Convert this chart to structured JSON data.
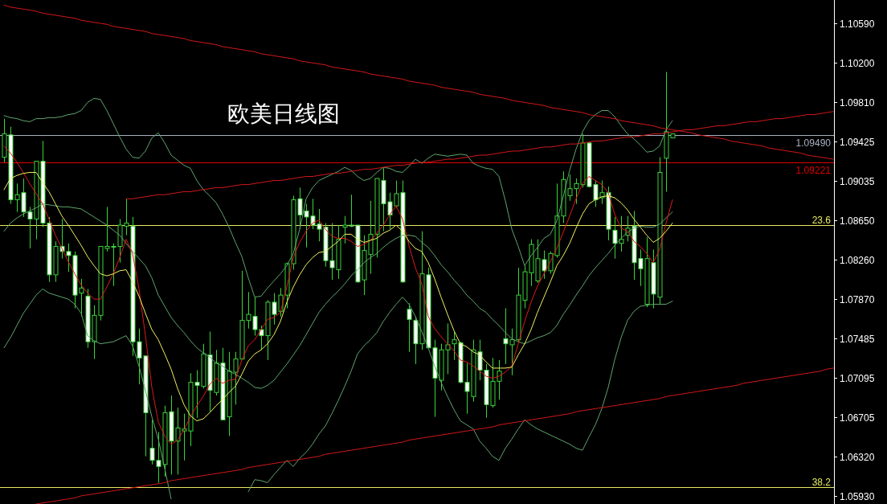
{
  "chart_data": {
    "type": "candlestick",
    "title": "欧美日线图",
    "tick_labels": "y",
    "color": "#3ad43a",
    "categories": [
      null,
      null,
      null,
      null,
      null,
      null,
      null,
      null,
      null,
      null,
      null,
      null,
      null,
      null,
      null,
      null,
      null,
      null,
      null,
      null,
      null,
      null,
      null,
      null,
      null,
      null,
      null,
      null,
      null,
      null,
      null,
      null,
      null,
      null,
      null,
      null,
      null,
      null,
      null,
      null,
      null,
      null,
      null,
      null,
      null,
      null,
      null,
      null,
      null,
      null,
      null,
      null,
      null,
      null,
      null,
      null,
      null,
      null,
      null,
      null,
      null,
      null,
      null,
      null,
      null,
      null,
      null,
      null,
      null,
      null,
      null,
      null,
      null,
      null,
      null,
      null,
      null,
      null,
      null,
      null,
      null,
      null,
      null,
      null,
      null,
      null,
      null,
      null,
      null,
      null,
      null,
      null,
      null,
      null,
      null,
      null,
      null,
      null,
      null,
      null,
      null,
      null,
      null,
      null,
      null,
      null,
      null,
      null,
      null,
      null,
      null,
      null,
      null,
      null,
      null,
      null,
      null,
      null,
      null,
      null,
      null,
      null,
      null,
      null,
      null,
      null,
      null,
      null,
      null,
      null
    ],
    "ohlc": [
      [
        1.0927,
        1.0965,
        1.0922,
        1.095
      ],
      [
        1.0949,
        1.0957,
        1.0881,
        1.0885
      ],
      [
        1.0885,
        1.0901,
        1.0873,
        1.089
      ],
      [
        1.0892,
        1.0906,
        1.0868,
        1.0873
      ],
      [
        1.0873,
        1.0878,
        1.0837,
        1.0866
      ],
      [
        1.0866,
        1.0923,
        1.0846,
        1.0923
      ],
      [
        1.0923,
        1.0943,
        1.0858,
        1.0862
      ],
      [
        1.0862,
        1.0868,
        1.0804,
        1.0811
      ],
      [
        1.0811,
        1.0844,
        1.0804,
        1.0839
      ],
      [
        1.0839,
        1.0866,
        1.0827,
        1.0834
      ],
      [
        1.0834,
        1.0842,
        1.0814,
        1.083
      ],
      [
        1.083,
        1.0834,
        1.0778,
        1.0791
      ],
      [
        1.0793,
        1.0807,
        1.077,
        1.0798
      ],
      [
        1.079,
        1.0797,
        1.0739,
        1.0745
      ],
      [
        1.0745,
        1.0781,
        1.0728,
        1.0771
      ],
      [
        1.0771,
        1.0839,
        1.0766,
        1.0839
      ],
      [
        1.0837,
        1.0878,
        1.0834,
        1.0839
      ],
      [
        1.0839,
        1.0842,
        1.08,
        1.0839
      ],
      [
        1.0839,
        1.0866,
        1.0823,
        1.086
      ],
      [
        1.0859,
        1.0886,
        1.085,
        1.0862
      ],
      [
        1.0859,
        1.0868,
        1.0731,
        1.0745
      ],
      [
        1.0745,
        1.0758,
        1.0703,
        1.0729
      ],
      [
        1.0731,
        1.0731,
        1.0632,
        1.0675
      ],
      [
        1.064,
        1.0668,
        1.0624,
        1.0628
      ],
      [
        1.0628,
        1.0656,
        1.0606,
        1.0622
      ],
      [
        1.0624,
        1.0682,
        1.0612,
        1.0675
      ],
      [
        1.0676,
        1.0692,
        1.0614,
        1.0647
      ],
      [
        1.0647,
        1.068,
        1.0614,
        1.066
      ],
      [
        1.0657,
        1.0674,
        1.0628,
        1.0659
      ],
      [
        1.0657,
        1.0714,
        1.0642,
        1.0705
      ],
      [
        1.0705,
        1.0717,
        1.067,
        1.0702
      ],
      [
        1.0701,
        1.0743,
        1.0699,
        1.0733
      ],
      [
        1.0732,
        1.0755,
        1.0676,
        1.0697
      ],
      [
        1.0695,
        1.0737,
        1.0692,
        1.0724
      ],
      [
        1.0724,
        1.0739,
        1.0668,
        1.0668
      ],
      [
        1.0671,
        1.0735,
        1.0652,
        1.0716
      ],
      [
        1.0715,
        1.0735,
        1.0683,
        1.0728
      ],
      [
        1.0728,
        1.0815,
        1.0727,
        1.0766
      ],
      [
        1.0766,
        1.0794,
        1.0758,
        1.0772
      ],
      [
        1.077,
        1.0789,
        1.0751,
        1.0757
      ],
      [
        1.0757,
        1.0761,
        1.0737,
        1.0751
      ],
      [
        1.0751,
        1.0786,
        1.0727,
        1.0784
      ],
      [
        1.0784,
        1.0793,
        1.0762,
        1.0772
      ],
      [
        1.0775,
        1.0798,
        1.077,
        1.0791
      ],
      [
        1.0791,
        1.0823,
        1.0778,
        1.0822
      ],
      [
        1.0822,
        1.0889,
        1.0816,
        1.0885
      ],
      [
        1.0886,
        1.0897,
        1.0856,
        1.087
      ],
      [
        1.0874,
        1.0881,
        1.0838,
        1.0868
      ],
      [
        1.0869,
        1.0886,
        1.0856,
        1.086
      ],
      [
        1.0861,
        1.0876,
        1.0844,
        1.0856
      ],
      [
        1.0858,
        1.0862,
        1.0819,
        1.0825
      ],
      [
        1.0825,
        1.0862,
        1.0806,
        1.0818
      ],
      [
        1.0816,
        1.086,
        1.0807,
        1.0846
      ],
      [
        1.0858,
        1.0869,
        1.0842,
        1.086
      ],
      [
        1.086,
        1.089,
        1.0858,
        1.0859
      ],
      [
        1.086,
        1.086,
        1.0803,
        1.0804
      ],
      [
        1.0806,
        1.085,
        1.0791,
        1.0835
      ],
      [
        1.0831,
        1.0884,
        1.0812,
        1.0851
      ],
      [
        1.0851,
        1.0906,
        1.0828,
        1.0906
      ],
      [
        1.0904,
        1.0917,
        1.0854,
        1.0881
      ],
      [
        1.0883,
        1.0892,
        1.0856,
        1.087
      ],
      [
        1.0879,
        1.0904,
        1.0877,
        1.0891
      ],
      [
        1.0892,
        1.0904,
        1.0803,
        1.0804
      ],
      [
        1.0777,
        1.0783,
        1.0735,
        1.0767
      ],
      [
        1.0766,
        1.077,
        1.0723,
        1.0743
      ],
      [
        1.0743,
        1.0854,
        1.0737,
        1.0812
      ],
      [
        1.0811,
        1.0818,
        1.0739,
        1.0739
      ],
      [
        1.0739,
        1.0747,
        1.0671,
        1.0709
      ],
      [
        1.0707,
        1.0743,
        1.0697,
        1.0737
      ],
      [
        1.0737,
        1.0763,
        1.0713,
        1.0742
      ],
      [
        1.0743,
        1.0755,
        1.0727,
        1.0747
      ],
      [
        1.0744,
        1.0745,
        1.0704,
        1.0705
      ],
      [
        1.0705,
        1.0724,
        1.0674,
        1.0696
      ],
      [
        1.0691,
        1.0747,
        1.0686,
        1.0737
      ],
      [
        1.0735,
        1.0747,
        1.0707,
        1.0717
      ],
      [
        1.0717,
        1.0723,
        1.067,
        1.0683
      ],
      [
        1.0682,
        1.0729,
        1.068,
        1.0706
      ],
      [
        1.0706,
        1.0727,
        1.0688,
        1.0716
      ],
      [
        1.0748,
        1.0778,
        1.0723,
        1.0743
      ],
      [
        1.0742,
        1.0758,
        1.0712,
        1.0747
      ],
      [
        1.0747,
        1.0818,
        1.0745,
        1.0791
      ],
      [
        1.0786,
        1.082,
        1.0778,
        1.0814
      ],
      [
        1.0813,
        1.0846,
        1.08,
        1.0841
      ],
      [
        1.0805,
        1.0846,
        1.0803,
        1.0827
      ],
      [
        1.0826,
        1.0835,
        1.0807,
        1.0815
      ],
      [
        1.0815,
        1.0834,
        1.0812,
        1.0832
      ],
      [
        1.083,
        1.0901,
        1.0828,
        1.0869
      ],
      [
        1.0869,
        1.0913,
        1.0862,
        1.0905
      ],
      [
        1.0889,
        1.091,
        1.0884,
        1.0896
      ],
      [
        1.0896,
        1.0906,
        1.0881,
        1.0901
      ],
      [
        1.09,
        1.095,
        1.0897,
        1.0941
      ],
      [
        1.0941,
        1.0942,
        1.0897,
        1.0898
      ],
      [
        1.09,
        1.0904,
        1.0878,
        1.0885
      ],
      [
        1.0887,
        1.0904,
        1.0881,
        1.0892
      ],
      [
        1.0892,
        1.0898,
        1.0845,
        1.0856
      ],
      [
        1.0855,
        1.0868,
        1.0827,
        1.0842
      ],
      [
        1.0842,
        1.0869,
        1.0834,
        1.0846
      ],
      [
        1.085,
        1.0869,
        1.0844,
        1.0857
      ],
      [
        1.0859,
        1.0874,
        1.0806,
        1.0823
      ],
      [
        1.0827,
        1.0836,
        1.08,
        1.0817
      ],
      [
        1.0782,
        1.0848,
        1.0779,
        1.0827
      ],
      [
        1.0823,
        1.0836,
        1.0778,
        1.0792
      ],
      [
        1.0789,
        1.0927,
        1.0782,
        1.0912
      ],
      [
        1.0926,
        1.1011,
        1.0893,
        1.0952
      ],
      [
        1.0946,
        1.095,
        1.0946,
        1.095
      ],
      null,
      null,
      null,
      null,
      null,
      null,
      null,
      null,
      null,
      null,
      null,
      null,
      null,
      null,
      null,
      null,
      null,
      null,
      null,
      null,
      null,
      null,
      null,
      null,
      null
    ],
    "series": [
      {
        "type": "line",
        "color": "#5da56d",
        "values": [
          1.0968,
          1.0966,
          1.0965,
          1.0963,
          1.0962,
          1.0965,
          1.0965,
          1.0966,
          1.0966,
          1.0967,
          1.0969,
          1.097,
          1.0973,
          1.0981,
          1.0985,
          1.0984,
          1.0973,
          1.096,
          1.0947,
          1.0935,
          1.0927,
          1.0926,
          1.0933,
          1.0946,
          1.0951,
          1.0941,
          1.0929,
          1.0924,
          1.0919,
          1.0916,
          1.0904,
          1.0895,
          1.0889,
          1.0882,
          1.0871,
          1.0858,
          1.0843,
          1.0829,
          1.0808,
          1.0789,
          1.079,
          1.0798,
          1.0805,
          1.0812,
          1.082,
          1.0832,
          1.0856,
          1.0886,
          1.0897,
          1.0904,
          1.0907,
          1.091,
          1.0913,
          1.0917,
          1.0914,
          1.0908,
          1.0904,
          1.0906,
          1.0912,
          1.0917,
          1.0916,
          1.0913,
          1.0912,
          1.0918,
          1.0925,
          1.0921,
          1.0926,
          1.093,
          1.0929,
          1.0928,
          1.0929,
          1.093,
          1.0929,
          1.0921,
          1.0918,
          1.0916,
          1.0915,
          1.0908,
          1.0884,
          1.0856,
          1.0839,
          1.082,
          1.083,
          1.0838,
          1.0847,
          1.0851,
          1.0864,
          1.0888,
          1.0914,
          1.0935,
          1.0952,
          1.0963,
          1.0969,
          1.0973,
          1.0973,
          1.0967,
          1.0958,
          1.095,
          1.0945,
          1.0939,
          1.0932,
          1.0933,
          1.0938,
          1.0954,
          1.0963,
          null,
          null,
          null,
          null,
          null,
          null,
          null,
          null,
          null,
          null,
          null,
          null,
          null,
          null,
          null,
          null,
          null,
          null,
          null,
          null,
          null,
          null,
          null,
          null,
          null
        ]
      },
      {
        "type": "line",
        "color": "#5da56d",
        "values": [
          1.0854,
          1.0862,
          1.0867,
          1.0871,
          1.0874,
          1.0877,
          1.0881,
          1.088,
          1.0879,
          1.0878,
          1.0878,
          1.0877,
          1.0876,
          1.0872,
          1.0868,
          1.0864,
          1.086,
          1.0855,
          1.085,
          1.0842,
          1.0834,
          1.0827,
          1.082,
          1.0808,
          1.0791,
          1.078,
          1.0769,
          1.0761,
          1.0754,
          1.0746,
          1.0739,
          1.0734,
          1.073,
          1.0724,
          1.0721,
          1.0716,
          1.0713,
          1.0709,
          1.0705,
          1.07,
          1.0699,
          1.0702,
          1.0707,
          1.0715,
          1.0723,
          1.0732,
          1.0741,
          1.0752,
          1.0763,
          1.0774,
          1.0782,
          1.0789,
          1.0795,
          1.0802,
          1.081,
          1.0816,
          1.0823,
          1.0828,
          1.0832,
          1.0838,
          1.0843,
          1.0847,
          1.085,
          1.085,
          1.0849,
          1.0843,
          1.0838,
          1.083,
          1.0821,
          1.0814,
          1.0806,
          1.0799,
          1.0791,
          1.0785,
          1.0778,
          1.0774,
          1.0767,
          1.0761,
          1.0754,
          1.0748,
          1.0745,
          1.0743,
          1.0746,
          1.0749,
          1.0751,
          1.0754,
          1.0761,
          1.0772,
          1.0781,
          1.0791,
          1.08,
          1.081,
          1.0818,
          1.0825,
          1.0832,
          1.084,
          1.0847,
          1.0853,
          1.0857,
          1.0859,
          1.0858,
          1.0858,
          1.0861,
          1.0867,
          1.0873,
          null,
          null,
          null,
          null,
          null,
          null,
          null,
          null,
          null,
          null,
          null,
          null,
          null,
          null,
          null,
          null,
          null,
          null,
          null,
          null,
          null,
          null,
          null,
          null,
          null
        ]
      },
      {
        "type": "line",
        "color": "#5da56d",
        "values": [
          1.0739,
          1.0749,
          1.0761,
          1.0773,
          1.0782,
          1.0791,
          1.0797,
          1.0793,
          1.0791,
          1.0789,
          1.0787,
          1.0782,
          1.0773,
          1.0751,
          1.0746,
          1.0743,
          1.0744,
          1.0745,
          1.0748,
          1.0751,
          1.0741,
          1.0721,
          1.0697,
          1.0671,
          1.0649,
          1.062,
          1.059,
          null,
          null,
          null,
          null,
          null,
          null,
          null,
          null,
          null,
          null,
          null,
          1.0597,
          1.0609,
          1.0608,
          1.0606,
          1.0614,
          1.0621,
          1.0628,
          1.0622,
          1.063,
          1.0636,
          1.0644,
          1.0654,
          1.0662,
          1.0674,
          1.0687,
          1.0701,
          1.0716,
          1.0733,
          1.0741,
          1.0747,
          1.0754,
          1.0765,
          1.0774,
          1.0782,
          1.0789,
          1.0782,
          1.077,
          1.0755,
          1.0739,
          1.0721,
          1.0705,
          1.0691,
          1.0678,
          1.0667,
          1.0663,
          1.0659,
          1.0647,
          1.064,
          1.0632,
          1.0628,
          1.064,
          1.0649,
          1.0659,
          1.0668,
          1.0663,
          1.0659,
          1.0656,
          1.0653,
          1.065,
          1.0647,
          1.0644,
          1.064,
          1.0638,
          1.0651,
          1.0663,
          1.0679,
          1.07,
          1.0727,
          1.0749,
          1.0766,
          1.0775,
          1.078,
          1.0781,
          1.0782,
          1.0782,
          1.0782,
          1.0785,
          null,
          null,
          null,
          null,
          null,
          null,
          null,
          null,
          null,
          null,
          null,
          null,
          null,
          null,
          null,
          null,
          null,
          null,
          null,
          null,
          null,
          null,
          null,
          null,
          null
        ]
      },
      {
        "type": "line",
        "color": "#e01818",
        "values": [
          1.0938,
          1.0931,
          1.0922,
          1.0912,
          1.0901,
          1.0891,
          1.0881,
          1.0866,
          1.085,
          1.0837,
          1.0824,
          1.0812,
          1.0801,
          1.0793,
          1.0787,
          1.0787,
          1.0799,
          1.0812,
          1.0828,
          1.0846,
          1.0832,
          1.0797,
          1.0751,
          1.07,
          1.0666,
          1.0652,
          1.0644,
          1.0648,
          1.0658,
          1.0671,
          1.0682,
          1.0691,
          1.0703,
          1.0709,
          1.0704,
          1.0707,
          1.0708,
          1.0727,
          1.0741,
          1.0747,
          1.0757,
          1.0767,
          1.0769,
          1.0774,
          1.0799,
          1.0828,
          1.0843,
          1.0854,
          1.0862,
          1.0865,
          1.0856,
          1.0849,
          1.0847,
          1.0847,
          1.0844,
          1.0839,
          1.0841,
          1.0845,
          1.0852,
          1.086,
          1.087,
          1.0879,
          1.0866,
          1.084,
          1.0818,
          1.0802,
          1.077,
          1.0758,
          1.075,
          1.0743,
          1.0736,
          1.0727,
          1.0725,
          1.0721,
          1.0716,
          1.0711,
          1.0709,
          1.0711,
          1.0715,
          1.0721,
          1.0743,
          1.0765,
          1.0784,
          1.08,
          1.0812,
          1.0824,
          1.0837,
          1.0853,
          1.0869,
          1.0886,
          1.0901,
          1.0908,
          1.0904,
          1.09,
          1.0892,
          1.0871,
          1.0857,
          1.0854,
          1.0844,
          1.0839,
          1.0832,
          1.0823,
          1.0836,
          1.0862,
          1.0885,
          null,
          null,
          null,
          null,
          null,
          null,
          null,
          null,
          null,
          null,
          null,
          null,
          null,
          null,
          null,
          null,
          null,
          null,
          null,
          null,
          null,
          null,
          null,
          null,
          null
        ]
      },
      {
        "type": "line",
        "color": "#f0f060",
        "values": [
          1.0895,
          1.0906,
          1.0909,
          1.0911,
          1.0912,
          1.0912,
          1.0902,
          1.0893,
          1.0881,
          1.0869,
          1.086,
          1.085,
          1.084,
          1.0829,
          1.082,
          1.0812,
          1.081,
          1.0812,
          1.0815,
          1.0816,
          1.0804,
          1.079,
          1.0773,
          1.0757,
          1.0747,
          1.0733,
          1.0718,
          1.0699,
          1.0683,
          1.0672,
          1.0667,
          1.0669,
          1.0675,
          1.0682,
          1.0688,
          1.0695,
          1.0701,
          1.0713,
          1.0726,
          1.0733,
          1.0737,
          1.0743,
          1.0752,
          1.0765,
          1.0784,
          1.0799,
          1.0811,
          1.0821,
          1.0828,
          1.0833,
          1.0834,
          1.0839,
          1.0844,
          1.0851,
          1.0851,
          1.0846,
          1.0843,
          1.0845,
          1.0847,
          1.0852,
          1.0855,
          1.086,
          1.0854,
          1.0844,
          1.0837,
          1.0834,
          1.0823,
          1.0807,
          1.0789,
          1.0772,
          1.0756,
          1.0743,
          1.074,
          1.0735,
          1.0732,
          1.0725,
          1.0719,
          1.0719,
          1.0719,
          1.072,
          1.0732,
          1.0743,
          1.0757,
          1.0774,
          1.0789,
          1.0804,
          1.082,
          1.083,
          1.0842,
          1.0857,
          1.0871,
          1.0881,
          1.0885,
          1.0888,
          1.0889,
          1.0887,
          1.0882,
          1.0875,
          1.0866,
          1.0858,
          1.085,
          1.0843,
          1.0847,
          1.0854,
          1.0862,
          null,
          null,
          null,
          null,
          null,
          null,
          null,
          null,
          null,
          null,
          null,
          null,
          null,
          null,
          null,
          null,
          null,
          null,
          null,
          null,
          null,
          null,
          null,
          null,
          null
        ]
      },
      {
        "type": "line",
        "color": "#d01818",
        "values": [
          1.1077,
          1.1075,
          1.1074,
          1.1073,
          1.1072,
          1.1071,
          1.1069,
          1.1068,
          1.1067,
          1.1066,
          1.1065,
          1.1064,
          1.1062,
          1.1061,
          1.106,
          1.1059,
          1.1058,
          1.1056,
          1.1055,
          1.1054,
          1.1053,
          1.1052,
          1.1051,
          1.1049,
          1.1048,
          1.1047,
          1.1046,
          1.1045,
          1.1044,
          1.1042,
          1.1041,
          1.104,
          1.1039,
          1.1038,
          1.1036,
          1.1035,
          1.1034,
          1.1033,
          1.1032,
          1.1031,
          1.1029,
          1.1028,
          1.1027,
          1.1026,
          1.1025,
          1.1024,
          1.1022,
          1.1021,
          1.102,
          1.1019,
          1.1018,
          1.1016,
          1.1015,
          1.1014,
          1.1013,
          1.1012,
          1.1011,
          1.1009,
          1.1008,
          1.1007,
          1.1006,
          1.1005,
          1.1004,
          1.1002,
          1.1001,
          1.1,
          1.0999,
          1.0998,
          1.0996,
          1.0995,
          1.0994,
          1.0993,
          1.0992,
          1.0991,
          1.0989,
          1.0988,
          1.0987,
          1.0986,
          1.0985,
          1.0983,
          1.0982,
          1.0981,
          1.098,
          1.0979,
          1.0978,
          1.0976,
          1.0975,
          1.0974,
          1.0973,
          1.0972,
          1.0971,
          1.0969,
          1.0968,
          1.0967,
          1.0966,
          1.0965,
          1.0963,
          1.0962,
          1.0961,
          1.096,
          1.0959,
          1.0958,
          1.0956,
          1.0955,
          1.0954,
          1.0953,
          1.0952,
          1.0951,
          1.0949,
          1.0948,
          1.0947,
          1.0946,
          1.0945,
          1.0943,
          1.0942,
          1.0941,
          1.094,
          1.0939,
          1.0938,
          1.0936,
          1.0935,
          1.0934,
          1.0933,
          1.0932,
          1.0931,
          1.0929,
          1.0928,
          1.0927,
          1.0926,
          1.0925
        ]
      },
      {
        "type": "line",
        "color": "#d01818",
        "values": [
          null,
          null,
          null,
          null,
          null,
          null,
          null,
          null,
          null,
          null,
          null,
          null,
          null,
          null,
          null,
          null,
          null,
          null,
          null,
          1.0886,
          1.0886,
          1.0887,
          1.0888,
          1.0889,
          1.089,
          1.089,
          1.0891,
          1.0892,
          1.0893,
          1.0893,
          1.0894,
          1.0895,
          1.0896,
          1.0897,
          1.0897,
          1.0898,
          1.0899,
          1.09,
          1.09,
          1.0901,
          1.0902,
          1.0903,
          1.0904,
          1.0904,
          1.0905,
          1.0906,
          1.0907,
          1.0908,
          1.0908,
          1.0909,
          1.091,
          1.0911,
          1.0911,
          1.0912,
          1.0913,
          1.0914,
          1.0915,
          1.0915,
          1.0916,
          1.0917,
          1.0918,
          1.0919,
          1.0919,
          1.092,
          1.0921,
          1.0922,
          1.0922,
          1.0923,
          1.0924,
          1.0925,
          1.0925,
          1.0926,
          1.0927,
          1.0928,
          1.0929,
          1.0929,
          1.093,
          1.0931,
          1.0932,
          1.0933,
          1.0933,
          1.0934,
          1.0935,
          1.0936,
          1.0937,
          1.0937,
          1.0938,
          1.0939,
          1.094,
          1.094,
          1.0941,
          1.0942,
          1.0943,
          1.0943,
          1.0944,
          1.0945,
          1.0946,
          1.0947,
          1.0947,
          1.0948,
          1.0949,
          1.095,
          1.095,
          1.0951,
          1.0952,
          1.0953,
          1.0954,
          1.0954,
          1.0955,
          1.0956,
          1.0957,
          1.0958,
          1.0958,
          1.0959,
          1.096,
          1.0961,
          1.0962,
          1.0962,
          1.0963,
          1.0964,
          1.0965,
          1.0965,
          1.0966,
          1.0967,
          1.0968,
          1.0969,
          1.0969,
          1.097,
          1.0971,
          1.0972
        ]
      },
      {
        "type": "line",
        "color": "#d01818",
        "values": [
          null,
          null,
          null,
          null,
          null,
          1.0585,
          1.0586,
          1.0587,
          1.0588,
          1.0589,
          1.059,
          1.0591,
          1.0593,
          1.0594,
          1.0595,
          1.0596,
          1.0597,
          1.0598,
          1.0599,
          1.06,
          1.0601,
          1.0602,
          1.0603,
          1.0604,
          1.0605,
          1.0606,
          1.0608,
          1.0609,
          1.061,
          1.0611,
          1.0612,
          1.0613,
          1.0614,
          1.0615,
          1.0616,
          1.0617,
          1.0618,
          1.0619,
          1.0621,
          1.0622,
          1.0623,
          1.0624,
          1.0625,
          1.0626,
          1.0627,
          1.0628,
          1.0629,
          1.063,
          1.0631,
          1.0632,
          1.0634,
          1.0635,
          1.0636,
          1.0637,
          1.0638,
          1.0639,
          1.064,
          1.0641,
          1.0642,
          1.0643,
          1.0644,
          1.0645,
          1.0646,
          1.0648,
          1.0649,
          1.065,
          1.0651,
          1.0652,
          1.0653,
          1.0654,
          1.0655,
          1.0656,
          1.0657,
          1.0658,
          1.0659,
          1.066,
          1.0661,
          1.0663,
          1.0664,
          1.0665,
          1.0666,
          1.0667,
          1.0668,
          1.0669,
          1.067,
          1.0671,
          1.0672,
          1.0673,
          1.0674,
          1.0676,
          1.0677,
          1.0678,
          1.0679,
          1.068,
          1.0681,
          1.0682,
          1.0683,
          1.0684,
          1.0685,
          1.0686,
          1.0687,
          1.0688,
          1.0689,
          1.0691,
          1.0692,
          1.0693,
          1.0694,
          1.0695,
          1.0696,
          1.0697,
          1.0698,
          1.0699,
          1.07,
          1.0701,
          1.0702,
          1.0704,
          1.0705,
          1.0706,
          1.0707,
          1.0708,
          1.0709,
          1.071,
          1.0711,
          1.0712,
          1.0713,
          1.0714,
          1.0715,
          1.0716,
          1.0718,
          1.0719
        ]
      }
    ],
    "ylim": [
      1.0585,
      1.1082
    ],
    "yticks": [
      {
        "value": 1.1059,
        "label": "1.10590"
      },
      {
        "value": 1.102,
        "label": "1.10200"
      },
      {
        "value": 1.0981,
        "label": "1.09810"
      },
      {
        "value": 1.09425,
        "label": "1.09425"
      },
      {
        "value": 1.09035,
        "label": "1.09035"
      },
      {
        "value": 1.0865,
        "label": "1.08650"
      },
      {
        "value": 1.0826,
        "label": "1.08260"
      },
      {
        "value": 1.0787,
        "label": "1.07870"
      },
      {
        "value": 1.07485,
        "label": "1.07485"
      },
      {
        "value": 1.07095,
        "label": "1.07095"
      },
      {
        "value": 1.06705,
        "label": "1.06705"
      },
      {
        "value": 1.0632,
        "label": "1.06320"
      },
      {
        "value": 1.0593,
        "label": "1.05930"
      }
    ],
    "ref_lines": [
      {
        "axis": "y",
        "value": 1.0949,
        "label": "1.09490",
        "color": "#a8b0c0"
      },
      {
        "axis": "y",
        "value": 1.09221,
        "label": "1.09221",
        "color": "#e00000"
      },
      {
        "axis": "y",
        "value": 1.086,
        "color": "#e8e860"
      },
      {
        "axis": "y",
        "value": 1.0602,
        "color": "#e8e860"
      }
    ],
    "annotations": [
      {
        "text": "23.6",
        "y": 1.086
      },
      {
        "text": "38.2",
        "y": 1.0602
      }
    ]
  }
}
